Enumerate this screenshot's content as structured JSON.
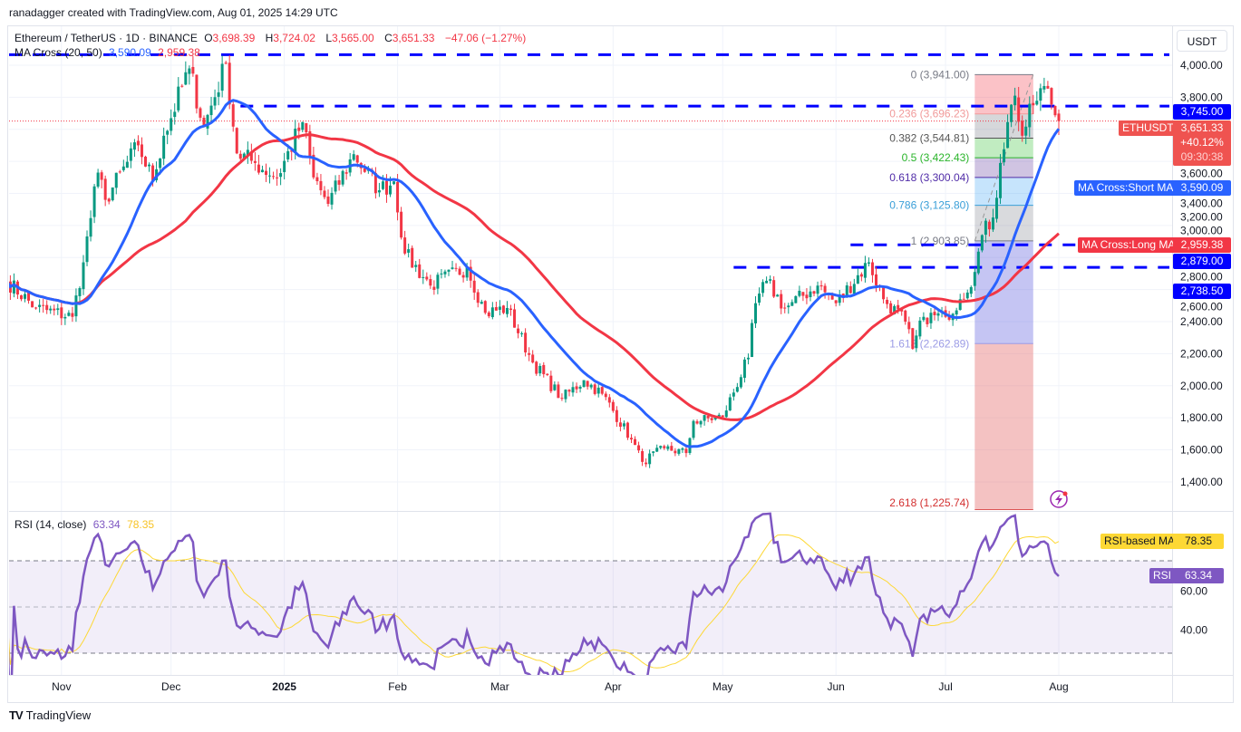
{
  "credit": "ranadagger created with TradingView.com, Aug 01, 2025 14:29 UTC",
  "legend": {
    "symbol": "Ethereum / TetherUS · 1D · BINANCE",
    "o_label": "O",
    "o": "3,698.39",
    "h_label": "H",
    "h": "3,724.02",
    "l_label": "L",
    "l": "3,565.00",
    "c_label": "C",
    "c": "3,651.33",
    "change": "−47.06 (−1.27%)",
    "ma_name": "MA Cross (20, 50)",
    "ma_short": "3,590.09",
    "ma_long": "2,959.38",
    "rsi_name": "RSI (14, close)",
    "rsi": "63.34",
    "rsi_ma": "78.35"
  },
  "currency_button": "USDT",
  "axis_tags": {
    "level_3745": {
      "text": "3,745.00",
      "price": 3745
    },
    "eth_label": "ETHUSDT",
    "eth_price": {
      "text": "3,651.33",
      "price": 3651.33
    },
    "eth_change": "+40.12%",
    "eth_countdown": "09:30:38",
    "short_ma_label": "MA Cross:Short MA",
    "short_ma": {
      "text": "3,590.09",
      "price": 3590.09
    },
    "long_ma_label": "MA Cross:Long MA",
    "long_ma": {
      "text": "2,959.38",
      "price": 2959.38
    },
    "level_2879": {
      "text": "2,879.00",
      "price": 2879
    },
    "level_2738": {
      "text": "2,738.50",
      "price": 2738.5
    },
    "rsi_ma_label": "RSI-based MA",
    "rsi_ma": {
      "text": "78.35",
      "value": 78.35
    },
    "rsi_label": "RSI",
    "rsi": {
      "text": "63.34",
      "value": 63.34
    }
  },
  "footer": {
    "logo": "TV",
    "brand": "TradingView"
  },
  "colors": {
    "up": "#089981",
    "down": "#f23645",
    "short_ma": "#2962ff",
    "long_ma": "#f23645",
    "level": "#0000ff",
    "rsi": "#7e57c2",
    "rsi_ma": "#fdd835"
  },
  "chart_data": {
    "type": "candlestick",
    "title": "Ethereum / TetherUS · 1D · BINANCE",
    "start_date": "2024-10-17",
    "end_date": "2025-08-01",
    "ylim": [
      1225,
      4080
    ],
    "y_ticks": [
      1400,
      1600,
      1800,
      2000,
      2200,
      2400,
      2600,
      2800,
      3000,
      3200,
      3400,
      3600,
      3800,
      4000
    ],
    "y_tick_labels": [
      "1,400.00",
      "1,600.00",
      "1,800.00",
      "2,000.00",
      "2,200.00",
      "2,400.00",
      "2,600.00",
      "2,800.00",
      "3,000.00",
      "3,200.00",
      "3,400.00",
      "3,600.00",
      "3,800.00",
      "4,000.00"
    ],
    "x_ticks": [
      {
        "date": "2024-11-01",
        "label": "Nov"
      },
      {
        "date": "2024-12-01",
        "label": "Dec"
      },
      {
        "date": "2025-01-01",
        "label": "2025",
        "bold": true
      },
      {
        "date": "2025-02-01",
        "label": "Feb"
      },
      {
        "date": "2025-03-01",
        "label": "Mar"
      },
      {
        "date": "2025-04-01",
        "label": "Apr"
      },
      {
        "date": "2025-05-01",
        "label": "May"
      },
      {
        "date": "2025-06-01",
        "label": "Jun"
      },
      {
        "date": "2025-07-01",
        "label": "Jul"
      },
      {
        "date": "2025-08-01",
        "label": "Aug"
      }
    ],
    "close_keypoints": [
      [
        "2024-10-17",
        2655
      ],
      [
        "2024-10-25",
        2485
      ],
      [
        "2024-11-04",
        2430
      ],
      [
        "2024-11-07",
        2770
      ],
      [
        "2024-11-11",
        3330
      ],
      [
        "2024-11-13",
        3160
      ],
      [
        "2024-11-22",
        3500
      ],
      [
        "2024-11-26",
        3280
      ],
      [
        "2024-11-29",
        3560
      ],
      [
        "2024-12-06",
        3980
      ],
      [
        "2024-12-10",
        3615
      ],
      [
        "2024-12-16",
        4010
      ],
      [
        "2024-12-19",
        3450
      ],
      [
        "2024-12-24",
        3390
      ],
      [
        "2024-12-30",
        3300
      ],
      [
        "2025-01-06",
        3645
      ],
      [
        "2025-01-09",
        3300
      ],
      [
        "2025-01-13",
        3135
      ],
      [
        "2025-01-20",
        3445
      ],
      [
        "2025-01-27",
        3220
      ],
      [
        "2025-01-31",
        3275
      ],
      [
        "2025-02-03",
        2825
      ],
      [
        "2025-02-10",
        2625
      ],
      [
        "2025-02-20",
        2740
      ],
      [
        "2025-02-25",
        2455
      ],
      [
        "2025-03-03",
        2485
      ],
      [
        "2025-03-10",
        2145
      ],
      [
        "2025-03-18",
        1920
      ],
      [
        "2025-03-24",
        2035
      ],
      [
        "2025-03-29",
        1950
      ],
      [
        "2025-04-06",
        1665
      ],
      [
        "2025-04-09",
        1525
      ],
      [
        "2025-04-15",
        1610
      ],
      [
        "2025-04-21",
        1580
      ],
      [
        "2025-04-23",
        1780
      ],
      [
        "2025-05-01",
        1805
      ],
      [
        "2025-05-08",
        2175
      ],
      [
        "2025-05-10",
        2515
      ],
      [
        "2025-05-13",
        2655
      ],
      [
        "2025-05-18",
        2485
      ],
      [
        "2025-05-27",
        2625
      ],
      [
        "2025-06-01",
        2515
      ],
      [
        "2025-06-10",
        2770
      ],
      [
        "2025-06-14",
        2540
      ],
      [
        "2025-06-20",
        2400
      ],
      [
        "2025-06-22",
        2230
      ],
      [
        "2025-06-25",
        2430
      ],
      [
        "2025-07-01",
        2430
      ],
      [
        "2025-07-05",
        2540
      ],
      [
        "2025-07-09",
        2710
      ],
      [
        "2025-07-11",
        2940
      ],
      [
        "2025-07-14",
        3050
      ],
      [
        "2025-07-16",
        3390
      ],
      [
        "2025-07-18",
        3645
      ],
      [
        "2025-07-20",
        3810
      ],
      [
        "2025-07-22",
        3560
      ],
      [
        "2025-07-25",
        3750
      ],
      [
        "2025-07-28",
        3870
      ],
      [
        "2025-07-30",
        3755
      ],
      [
        "2025-08-01",
        3651.33
      ]
    ],
    "last_candle": {
      "open": 3698.39,
      "high": 3724.02,
      "low": 3565.0,
      "close": 3651.33
    },
    "moving_averages": [
      {
        "name": "Short MA",
        "period": 20
      },
      {
        "name": "Long MA",
        "period": 50
      }
    ],
    "horizontal_levels": [
      {
        "price": 4066,
        "from": "2024-10-17"
      },
      {
        "price": 3745,
        "from": "2024-12-20"
      },
      {
        "price": 2879,
        "from": "2025-06-05"
      },
      {
        "price": 2738.5,
        "from": "2025-05-04"
      }
    ],
    "fibonacci": {
      "from": "2025-07-09",
      "to": "2025-07-25",
      "levels": [
        {
          "ratio": "0",
          "price": 3941.0,
          "label": "0 (3,941.00)",
          "color": "#787b86",
          "fill": "rgba(242,54,69,0.30)"
        },
        {
          "ratio": "0.236",
          "price": 3696.23,
          "label": "0.236 (3,696.23)",
          "color": "#f19a9a",
          "fill": "rgba(120,123,134,0.30)"
        },
        {
          "ratio": "0.382",
          "price": 3544.81,
          "label": "0.382 (3,544.81)",
          "color": "#555",
          "fill": "rgba(76,200,76,0.35)"
        },
        {
          "ratio": "0.5",
          "price": 3422.43,
          "label": "0.5 (3,422.43)",
          "color": "#2bb52b",
          "fill": "rgba(100,60,160,0.30)"
        },
        {
          "ratio": "0.618",
          "price": 3300.04,
          "label": "0.618 (3,300.04)",
          "color": "#512da8",
          "fill": "rgba(66,165,245,0.30)"
        },
        {
          "ratio": "0.786",
          "price": 3125.8,
          "label": "0.786 (3,125.80)",
          "color": "#3a9fd8",
          "fill": "rgba(120,123,134,0.28)"
        },
        {
          "ratio": "1",
          "price": 2903.85,
          "label": "1 (2,903.85)",
          "color": "#787b86",
          "fill": "rgba(90,90,220,0.35)"
        },
        {
          "ratio": "1.618",
          "price": 2262.89,
          "label": "1.618 (2,262.89)",
          "color": "#9c9ce6",
          "fill": "rgba(230,120,120,0.45)"
        },
        {
          "ratio": "2.618",
          "price": 1225.74,
          "label": "2.618 (1,225.74)",
          "color": "#d32f2f",
          "fill": null
        }
      ]
    },
    "rsi": {
      "period": 14,
      "ma_period": 14,
      "ylim": [
        20,
        90
      ],
      "bands": [
        70,
        50,
        30
      ],
      "y_ticks": [
        40,
        60
      ],
      "y_tick_labels": [
        "40.00",
        "60.00"
      ]
    }
  }
}
